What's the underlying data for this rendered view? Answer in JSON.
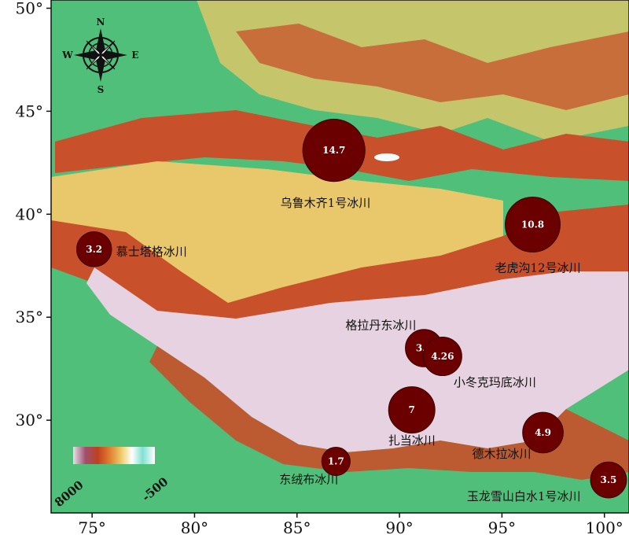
{
  "map": {
    "lat_ticks": [
      {
        "value": 50,
        "label": "50°"
      },
      {
        "value": 45,
        "label": "45°"
      },
      {
        "value": 40,
        "label": "40°"
      },
      {
        "value": 35,
        "label": "35°"
      },
      {
        "value": 30,
        "label": "30°"
      }
    ],
    "lon_ticks": [
      {
        "value": 75,
        "label": "75°"
      },
      {
        "value": 80,
        "label": "80°"
      },
      {
        "value": 85,
        "label": "85°"
      },
      {
        "value": 90,
        "label": "90°"
      },
      {
        "value": 95,
        "label": "95°"
      },
      {
        "value": 100,
        "label": "100°"
      }
    ],
    "extent": {
      "lon_min": 73,
      "lon_max": 101.2,
      "lat_min": 25.5,
      "lat_max": 50.4
    },
    "compass": {
      "n": "N",
      "s": "S",
      "e": "E",
      "w": "W"
    },
    "legend": {
      "max_label": "8000",
      "min_label": "-500"
    },
    "colors": {
      "bubble": "#6b0000",
      "lowland": "#4fbf7a",
      "basin": "#e8c86a",
      "mountain": "#c8502a",
      "plateau": "#e6d2e0"
    }
  },
  "glaciers": [
    {
      "name": "乌鲁木齐1号冰川",
      "value": "14.7",
      "lon": 86.8,
      "lat": 43.1
    },
    {
      "name": "老虎沟12号冰川",
      "value": "10.8",
      "lon": 96.5,
      "lat": 39.5
    },
    {
      "name": "慕士塔格冰川",
      "value": "3.2",
      "lon": 75.1,
      "lat": 38.3
    },
    {
      "name": "格拉丹东冰川",
      "value": "3.9",
      "lon": 91.2,
      "lat": 33.5
    },
    {
      "name": "小冬克玛底冰川",
      "value": "4.26",
      "lon": 92.1,
      "lat": 33.1
    },
    {
      "name": "扎当冰川",
      "value": "7",
      "lon": 90.6,
      "lat": 30.5
    },
    {
      "name": "德木拉冰川",
      "value": "4.9",
      "lon": 97.0,
      "lat": 29.4
    },
    {
      "name": "东绒布冰川",
      "value": "1.7",
      "lon": 86.9,
      "lat": 28.0
    },
    {
      "name": "玉龙雪山白水1号冰川",
      "value": "3.5",
      "lon": 100.2,
      "lat": 27.1
    }
  ]
}
